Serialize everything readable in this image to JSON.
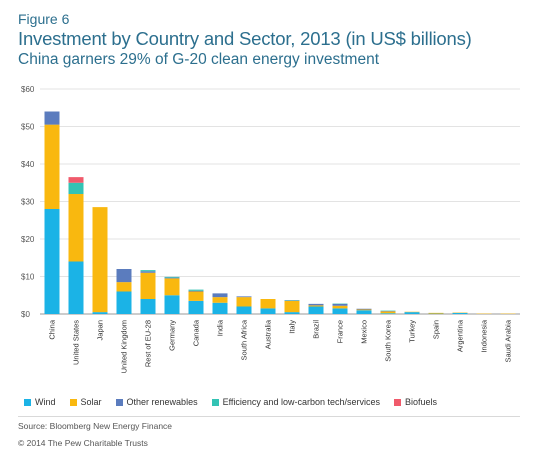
{
  "figure_label": "Figure 6",
  "title": "Investment by Country and Sector, 2013 (in US$ billions)",
  "subtitle": "China garners 29% of G-20 clean energy investment",
  "source": "Source: Bloomberg New Energy Finance",
  "copyright": "© 2014 The Pew Charitable Trusts",
  "chart_data": {
    "type": "bar",
    "stacked": true,
    "categories": [
      "China",
      "United States",
      "Japan",
      "United Kingdom",
      "Rest of EU-28",
      "Germany",
      "Canada",
      "India",
      "South Africa",
      "Australia",
      "Italy",
      "Brazil",
      "France",
      "Mexico",
      "South Korea",
      "Turkey",
      "Spain",
      "Argentina",
      "Indonesia",
      "Saudi Arabia"
    ],
    "series": [
      {
        "name": "Wind",
        "color": "#1bb3e6",
        "values": [
          28,
          14,
          0.5,
          6,
          4,
          5,
          3.5,
          3,
          2,
          1.5,
          0.5,
          2,
          1.5,
          1,
          0.2,
          0.5,
          0.1,
          0.3,
          0,
          0
        ]
      },
      {
        "name": "Solar",
        "color": "#f9b80f",
        "values": [
          22.5,
          18,
          28,
          2.5,
          7,
          4.5,
          2.5,
          1.5,
          2.5,
          2.5,
          3,
          0.3,
          0.7,
          0.2,
          0.5,
          0.1,
          0.2,
          0.1,
          0.1,
          0.1
        ]
      },
      {
        "name": "Other renewables",
        "color": "#5b7cbe",
        "values": [
          3.5,
          0,
          0,
          3.5,
          0.4,
          0.2,
          0.2,
          1,
          0.2,
          0,
          0.1,
          0.4,
          0.5,
          0.2,
          0.1,
          0,
          0,
          0,
          0,
          0
        ]
      },
      {
        "name": "Efficiency and low-carbon tech/services",
        "color": "#33c3b4",
        "values": [
          0,
          3,
          0,
          0,
          0.3,
          0.2,
          0.3,
          0,
          0,
          0,
          0.1,
          0,
          0.1,
          0,
          0.1,
          0,
          0,
          0,
          0,
          0
        ]
      },
      {
        "name": "Biofuels",
        "color": "#f05a6b",
        "values": [
          0,
          1.5,
          0,
          0,
          0,
          0,
          0,
          0,
          0,
          0,
          0,
          0,
          0,
          0,
          0,
          0,
          0,
          0,
          0,
          0
        ]
      }
    ],
    "y_ticks": [
      "$0",
      "$10",
      "$20",
      "$30",
      "$40",
      "$50",
      "$60"
    ],
    "ylim": [
      0,
      60
    ],
    "grid": true,
    "legend": "bottom"
  }
}
